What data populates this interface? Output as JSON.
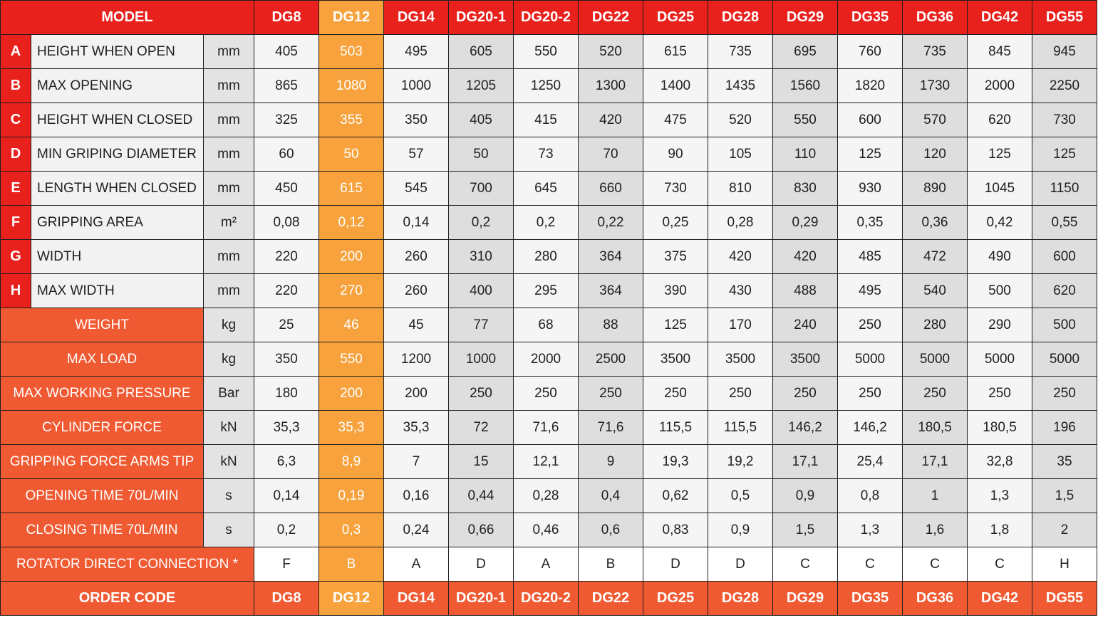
{
  "header": {
    "model_label": "MODEL",
    "models": [
      "DG8",
      "DG12",
      "DG14",
      "DG20-1",
      "DG20-2",
      "DG22",
      "DG25",
      "DG28",
      "DG29",
      "DG35",
      "DG36",
      "DG42",
      "DG55"
    ]
  },
  "highlight_model": "DG12",
  "dimension_rows": [
    {
      "letter": "A",
      "label": "HEIGHT WHEN OPEN",
      "unit": "mm",
      "values": [
        "405",
        "503",
        "495",
        "605",
        "550",
        "520",
        "615",
        "735",
        "695",
        "760",
        "735",
        "845",
        "945"
      ]
    },
    {
      "letter": "B",
      "label": "MAX OPENING",
      "unit": "mm",
      "values": [
        "865",
        "1080",
        "1000",
        "1205",
        "1250",
        "1300",
        "1400",
        "1435",
        "1560",
        "1820",
        "1730",
        "2000",
        "2250"
      ]
    },
    {
      "letter": "C",
      "label": "HEIGHT WHEN CLOSED",
      "unit": "mm",
      "values": [
        "325",
        "355",
        "350",
        "405",
        "415",
        "420",
        "475",
        "520",
        "550",
        "600",
        "570",
        "620",
        "730"
      ]
    },
    {
      "letter": "D",
      "label": "MIN GRIPING DIAMETER",
      "unit": "mm",
      "values": [
        "60",
        "50",
        "57",
        "50",
        "73",
        "70",
        "90",
        "105",
        "110",
        "125",
        "120",
        "125",
        "125"
      ]
    },
    {
      "letter": "E",
      "label": "LENGTH WHEN CLOSED",
      "unit": "mm",
      "values": [
        "450",
        "615",
        "545",
        "700",
        "645",
        "660",
        "730",
        "810",
        "830",
        "930",
        "890",
        "1045",
        "1150"
      ]
    },
    {
      "letter": "F",
      "label": "GRIPPING AREA",
      "unit": "m²",
      "values": [
        "0,08",
        "0,12",
        "0,14",
        "0,2",
        "0,2",
        "0,22",
        "0,25",
        "0,28",
        "0,29",
        "0,35",
        "0,36",
        "0,42",
        "0,55"
      ]
    },
    {
      "letter": "G",
      "label": "WIDTH",
      "unit": "mm",
      "values": [
        "220",
        "200",
        "260",
        "310",
        "280",
        "364",
        "375",
        "420",
        "420",
        "485",
        "472",
        "490",
        "600"
      ]
    },
    {
      "letter": "H",
      "label": "MAX WIDTH",
      "unit": "mm",
      "values": [
        "220",
        "270",
        "260",
        "400",
        "295",
        "364",
        "390",
        "430",
        "488",
        "495",
        "540",
        "500",
        "620"
      ]
    }
  ],
  "spec_rows": [
    {
      "label": "WEIGHT",
      "unit": "kg",
      "values": [
        "25",
        "46",
        "45",
        "77",
        "68",
        "88",
        "125",
        "170",
        "240",
        "250",
        "280",
        "290",
        "500"
      ]
    },
    {
      "label": "MAX LOAD",
      "unit": "kg",
      "values": [
        "350",
        "550",
        "1200",
        "1000",
        "2000",
        "2500",
        "3500",
        "3500",
        "3500",
        "5000",
        "5000",
        "5000",
        "5000"
      ]
    },
    {
      "label": "MAX WORKING PRESSURE",
      "unit": "Bar",
      "values": [
        "180",
        "200",
        "200",
        "250",
        "250",
        "250",
        "250",
        "250",
        "250",
        "250",
        "250",
        "250",
        "250"
      ]
    },
    {
      "label": "CYLINDER FORCE",
      "unit": "kN",
      "values": [
        "35,3",
        "35,3",
        "35,3",
        "72",
        "71,6",
        "71,6",
        "115,5",
        "115,5",
        "146,2",
        "146,2",
        "180,5",
        "180,5",
        "196"
      ]
    },
    {
      "label": "GRIPPING FORCE ARMS TIP",
      "unit": "kN",
      "values": [
        "6,3",
        "8,9",
        "7",
        "15",
        "12,1",
        "9",
        "19,3",
        "19,2",
        "17,1",
        "25,4",
        "17,1",
        "32,8",
        "35"
      ]
    },
    {
      "label": "OPENING TIME 70L/MIN",
      "unit": "s",
      "values": [
        "0,14",
        "0,19",
        "0,16",
        "0,44",
        "0,28",
        "0,4",
        "0,62",
        "0,5",
        "0,9",
        "0,8",
        "1",
        "1,3",
        "1,5"
      ]
    },
    {
      "label": "CLOSING TIME 70L/MIN",
      "unit": "s",
      "values": [
        "0,2",
        "0,3",
        "0,24",
        "0,66",
        "0,46",
        "0,6",
        "0,83",
        "0,9",
        "1,5",
        "1,3",
        "1,6",
        "1,8",
        "2"
      ]
    }
  ],
  "rotator_row": {
    "label": "ROTATOR DIRECT CONNECTION *",
    "values": [
      "F",
      "B",
      "A",
      "D",
      "A",
      "B",
      "D",
      "D",
      "C",
      "C",
      "C",
      "C",
      "H"
    ]
  },
  "order_row": {
    "label": "ORDER CODE",
    "values": [
      "DG8",
      "DG12",
      "DG14",
      "DG20-1",
      "DG20-2",
      "DG22",
      "DG25",
      "DG28",
      "DG29",
      "DG35",
      "DG36",
      "DG42",
      "DG55"
    ]
  },
  "colors": {
    "red": "#e8211d",
    "orange": "#f05a32",
    "highlight": "#f7a23c",
    "light_cell": "#f5f5f5",
    "dark_cell": "#dedede"
  }
}
